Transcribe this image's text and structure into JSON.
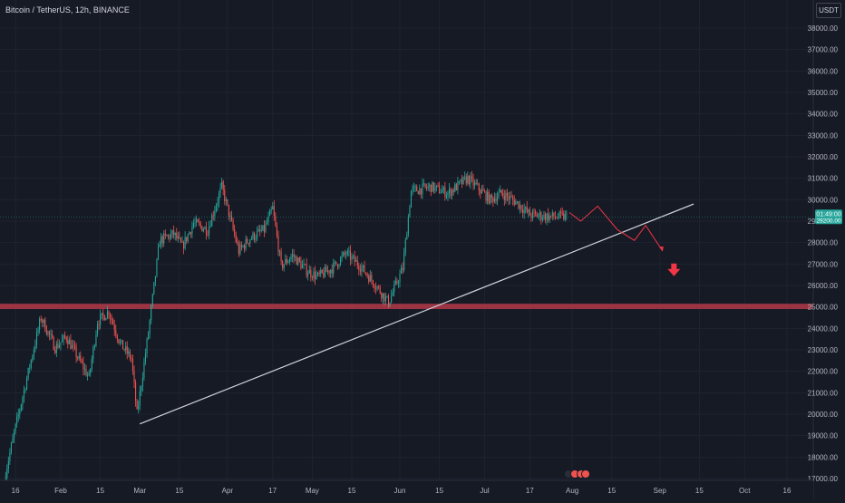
{
  "header": {
    "title": "Bitcoin / TetherUS, 12h, BINANCE"
  },
  "currency_button": "USDT",
  "price_tag": {
    "value": 29200,
    "label": "01:49:00"
  },
  "colors": {
    "background": "#161a25",
    "up": "#26a69a",
    "down": "#ef5350",
    "trendline": "#d1d4dc",
    "support_zone": "#b23a48",
    "projection": "#f23645",
    "axis_text": "#b2b5be"
  },
  "chart_data": {
    "type": "candlestick",
    "ylim": [
      17000,
      38800
    ],
    "y_ticks": [
      17000,
      18000,
      19000,
      20000,
      21000,
      22000,
      23000,
      24000,
      25000,
      26000,
      27000,
      28000,
      29000,
      30000,
      31000,
      32000,
      33000,
      34000,
      35000,
      36000,
      37000,
      38000
    ],
    "x_ticks": [
      "16",
      "Feb",
      "15",
      "Mar",
      "15",
      "Apr",
      "17",
      "May",
      "15",
      "Jun",
      "15",
      "Jul",
      "17",
      "Aug",
      "15",
      "Sep",
      "15",
      "Oct",
      "16"
    ],
    "x_tick_days": [
      15,
      31,
      45,
      59,
      73,
      90,
      106,
      120,
      134,
      151,
      165,
      181,
      197,
      212,
      226,
      243,
      257,
      273,
      288
    ],
    "xlim_days": [
      11,
      295
    ],
    "anchors_days": [
      11,
      15,
      24,
      29,
      33,
      41,
      44,
      48,
      52,
      56,
      58,
      62,
      66,
      71,
      74,
      78,
      83,
      88,
      94,
      98,
      103,
      106,
      109,
      113,
      118,
      122,
      127,
      132,
      137,
      142,
      147,
      152,
      155,
      162,
      168,
      175,
      183,
      187,
      192,
      197,
      205,
      210
    ],
    "anchors_close": [
      17000,
      19400,
      24500,
      23100,
      23600,
      21700,
      24300,
      24800,
      23300,
      22600,
      20000,
      23800,
      28100,
      28400,
      27800,
      28900,
      28600,
      30600,
      27600,
      28200,
      28600,
      29600,
      26900,
      27400,
      26700,
      26400,
      26800,
      27500,
      26900,
      26100,
      25200,
      26800,
      30400,
      30600,
      30300,
      31000,
      30000,
      30300,
      29900,
      29300,
      29200,
      29200
    ],
    "last_candle_day": 210,
    "support_zone": [
      24900,
      25150
    ],
    "trendline": {
      "from": {
        "day": 59,
        "price": 19550
      },
      "to": {
        "day": 255,
        "price": 29800
      }
    },
    "projection_path": [
      {
        "day": 211,
        "price": 29400
      },
      {
        "day": 215,
        "price": 29000
      },
      {
        "day": 221,
        "price": 29700
      },
      {
        "day": 228,
        "price": 28600
      },
      {
        "day": 234,
        "price": 28100
      },
      {
        "day": 238,
        "price": 28800
      },
      {
        "day": 244,
        "price": 27600
      }
    ],
    "down_arrow": {
      "day": 248,
      "price": 26600
    }
  }
}
